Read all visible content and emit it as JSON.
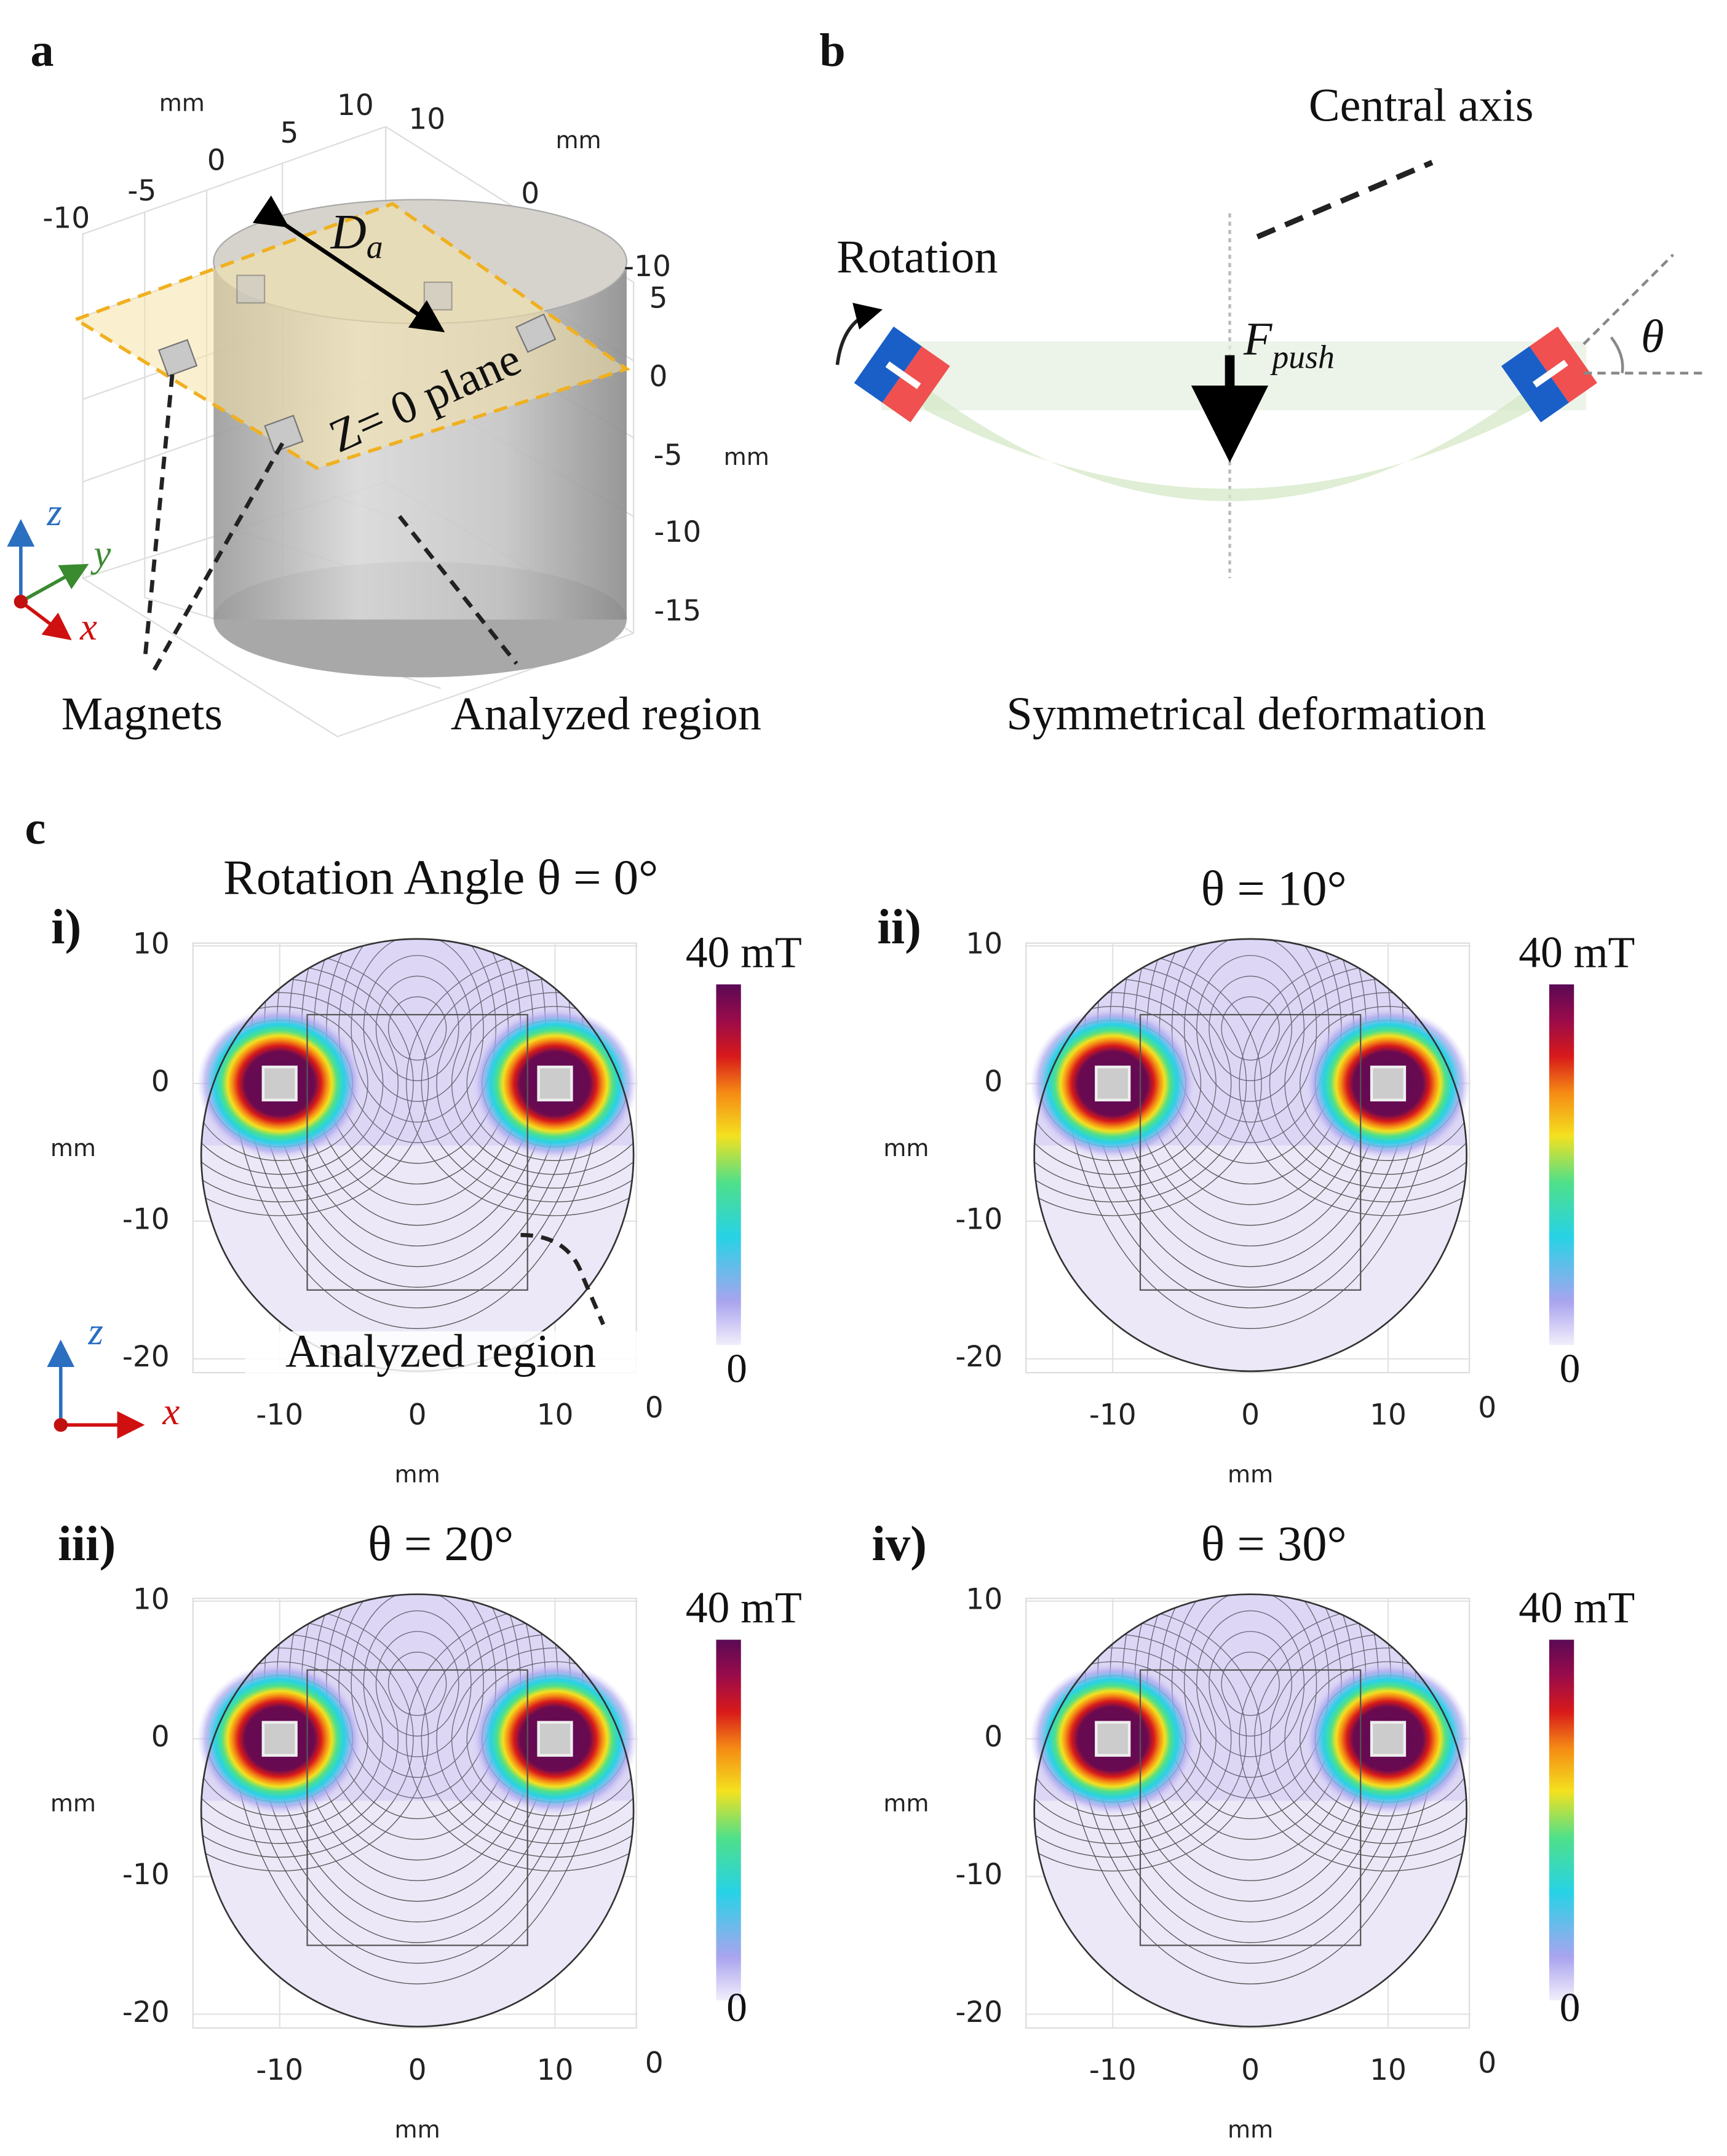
{
  "panel_a": {
    "label": "a",
    "x_ticks": [
      "-10",
      "-5",
      "0",
      "5",
      "10"
    ],
    "x_unit": "mm",
    "y_ticks": [
      "10",
      "0",
      "-10"
    ],
    "y_unit": "mm",
    "z_ticks": [
      "5",
      "0",
      "-5",
      "-10",
      "-15"
    ],
    "z_unit": "mm",
    "diameter_label": "D",
    "diameter_subscript": "a",
    "plane_label": "Z= 0 plane",
    "axes": [
      "z",
      "y",
      "x"
    ],
    "callouts": [
      "Magnets",
      "Analyzed region"
    ]
  },
  "panel_b": {
    "label": "b",
    "central_axis": "Central axis",
    "rotation": "Rotation",
    "force": "F",
    "force_subscript": "push",
    "angle": "θ",
    "caption": "Symmetrical deformation"
  },
  "panel_c": {
    "label": "c",
    "x_ticks": [
      -10,
      0,
      10
    ],
    "y_ticks": [
      10,
      0,
      -10,
      -20
    ],
    "axis_unit": "mm",
    "colorbar_max": "40 mT",
    "colorbar_min": "0",
    "corner_label": "0",
    "callout": "Analyzed region",
    "axes": [
      "z",
      "x"
    ],
    "subplots": [
      {
        "numeral": "i)",
        "title": "Rotation Angle θ = 0°"
      },
      {
        "numeral": "ii)",
        "title": "θ = 10°"
      },
      {
        "numeral": "iii)",
        "title": "θ = 20°"
      },
      {
        "numeral": "iv)",
        "title": "θ = 30°"
      }
    ]
  }
}
